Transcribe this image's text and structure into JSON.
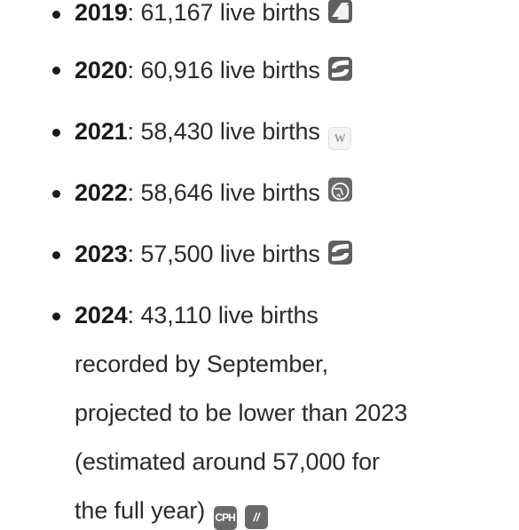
{
  "items": [
    {
      "year": "2019",
      "text": ": 61,167 live births",
      "source_icon": "s-logo-icon"
    },
    {
      "year": "2020",
      "text": ": 60,916 live births",
      "source_icon": "s-logo-icon"
    },
    {
      "year": "2021",
      "text": ": 58,430 live births",
      "source_icon": "wikipedia-icon"
    },
    {
      "year": "2022",
      "text": ": 58,646 live births",
      "source_icon": "globe-icon"
    },
    {
      "year": "2023",
      "text": ": 57,500 live births",
      "source_icon": "s-logo-icon"
    },
    {
      "year": "2024",
      "text": ": 43,110 live births",
      "continuation": [
        "recorded by September,",
        "projected to be lower than 2023",
        "(estimated around 57,000 for",
        "the full year)"
      ],
      "source_icons": [
        "cph-icon",
        "slash-logo-icon"
      ]
    }
  ],
  "icons": {
    "wikipedia_glyph": "W",
    "cph_glyph": "CPH",
    "slash_glyph": "//"
  },
  "colors": {
    "text": "#2b2b2b",
    "bullet": "#1a1a1a",
    "icon_bg": "#5f5f5f",
    "background": "#ffffff"
  }
}
